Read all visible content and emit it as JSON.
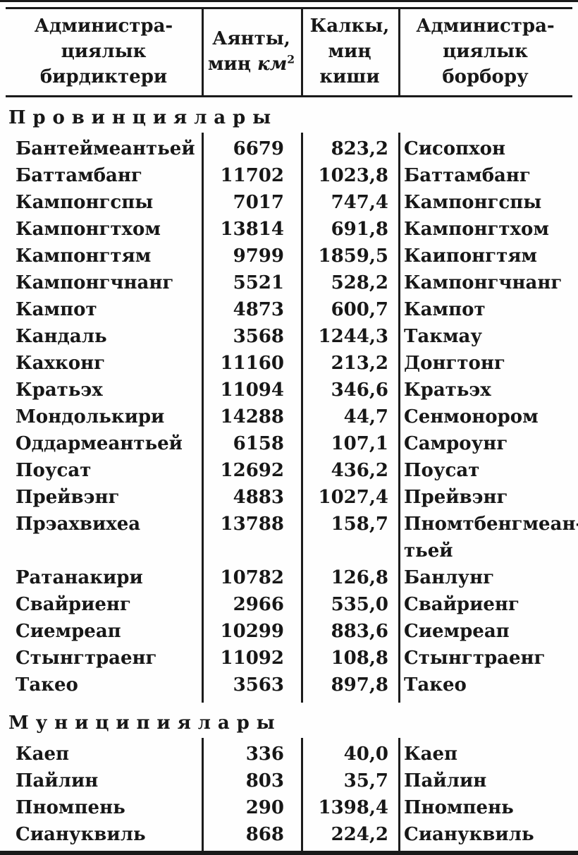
{
  "page": {
    "ink_color": "#1a1a1a",
    "background_color": "#fefefe"
  },
  "table": {
    "header": {
      "admin_units_lines": [
        "Администра-",
        "циялык",
        "бирдиктери"
      ],
      "area": {
        "line1": "Аянты,",
        "line2_word": "миң",
        "line2_unit": "км",
        "line2_sup": "2"
      },
      "population_lines": [
        "Калкы,",
        "миң",
        "киши"
      ],
      "admin_center_lines": [
        "Администра-",
        "циялык",
        "борбору"
      ]
    },
    "sections": [
      {
        "title": "Провинциялары",
        "rows": [
          [
            "Бантеймеантьей",
            "6679",
            "823,2",
            "Сисопхон"
          ],
          [
            "Баттамбанг",
            "11702",
            "1023,8",
            "Баттамбанг"
          ],
          [
            "Кампонгспы",
            "7017",
            "747,4",
            "Кампонгспы"
          ],
          [
            "Кампонгтхом",
            "13814",
            "691,8",
            "Кампонгтхом"
          ],
          [
            "Кампонгтям",
            "9799",
            "1859,5",
            "Каипонгтям"
          ],
          [
            "Кампонгчнанг",
            "5521",
            "528,2",
            "Кампонгчнанг"
          ],
          [
            "Кампот",
            "4873",
            "600,7",
            "Кампот"
          ],
          [
            "Кандаль",
            "3568",
            "1244,3",
            "Такмау"
          ],
          [
            "Кахконг",
            "11160",
            "213,2",
            "Донгтонг"
          ],
          [
            "Кратьэх",
            "11094",
            "346,6",
            "Кратьэх"
          ],
          [
            "Мондолькири",
            "14288",
            "44,7",
            "Сенмонором"
          ],
          [
            "Оддармеантьей",
            "6158",
            "107,1",
            "Самроунг"
          ],
          [
            "Поусат",
            "12692",
            "436,2",
            "Поусат"
          ],
          [
            "Прейвэнг",
            "4883",
            "1027,4",
            "Прейвэнг"
          ],
          [
            "Прэахвихеа",
            "13788",
            "158,7",
            "Пномтбенгмеан-\nтьей"
          ],
          [
            "Ратанакири",
            "10782",
            "126,8",
            "Банлунг"
          ],
          [
            "Свайриенг",
            "2966",
            "535,0",
            "Свайриенг"
          ],
          [
            "Сиемреап",
            "10299",
            "883,6",
            "Сиемреап"
          ],
          [
            "Стынгтраенг",
            "11092",
            "108,8",
            "Стынгтраенг"
          ],
          [
            "Такео",
            "3563",
            "897,8",
            "Такео"
          ]
        ]
      },
      {
        "title": "Муниципиялары",
        "rows": [
          [
            "Каеп",
            "336",
            "40,0",
            "Каеп"
          ],
          [
            "Пайлин",
            "803",
            "35,7",
            "Пайлин"
          ],
          [
            "Пномпень",
            "290",
            "1398,4",
            "Пномпень"
          ],
          [
            "Сиануквиль",
            "868",
            "224,2",
            "Сиануквиль"
          ]
        ]
      }
    ]
  }
}
